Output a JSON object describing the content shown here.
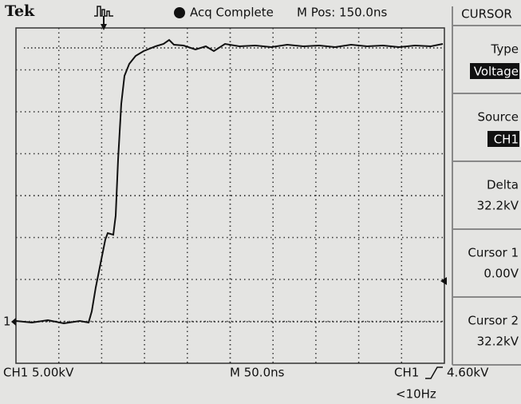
{
  "header": {
    "brand": "Tek",
    "status": "Acq Complete",
    "position": "M Pos: 150.0ns"
  },
  "menu": {
    "title": "CURSOR",
    "items": [
      {
        "label": "Type",
        "value": "Voltage"
      },
      {
        "label": "Source",
        "value": "CH1"
      },
      {
        "label": "Delta",
        "value": "32.2kV"
      },
      {
        "label": "Cursor 1",
        "value": "0.00V"
      },
      {
        "label": "Cursor 2",
        "value": "32.2kV"
      }
    ]
  },
  "marker": "1",
  "footer": {
    "channel": "CH1",
    "scale": "5.00kV",
    "timebase": "M 50.0ns",
    "trigger_source": "CH1",
    "trigger_level": "4.60kV",
    "frequency": "<10Hz"
  }
}
